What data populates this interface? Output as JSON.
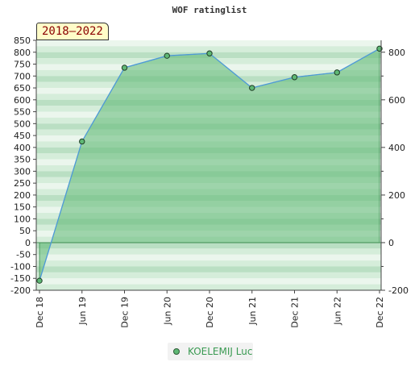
{
  "chart_data": {
    "type": "area",
    "title": "WOF ratinglist",
    "period_label": "2018–2022",
    "categories": [
      "Dec 18",
      "Jun 19",
      "Dec 19",
      "Jun 20",
      "Dec 20",
      "Jun 21",
      "Dec 21",
      "Jun 22",
      "Dec 22"
    ],
    "series": [
      {
        "name": "KOELEMIJ Luc",
        "values": [
          -160,
          425,
          735,
          785,
          795,
          650,
          695,
          715,
          815
        ]
      }
    ],
    "ylim": [
      -200,
      850
    ],
    "y_ticks_left": [
      850,
      800,
      750,
      700,
      650,
      600,
      550,
      500,
      450,
      400,
      350,
      300,
      250,
      200,
      150,
      100,
      50,
      0,
      -50,
      -100,
      -150,
      -200
    ],
    "y_ticks_right": [
      800,
      600,
      400,
      200,
      0,
      -200
    ],
    "line_color": "#4e9ad8",
    "area_color": "#5fb875",
    "marker_color": "#5fb875",
    "legend": "bottom-center",
    "grid": "horizontal bands"
  }
}
